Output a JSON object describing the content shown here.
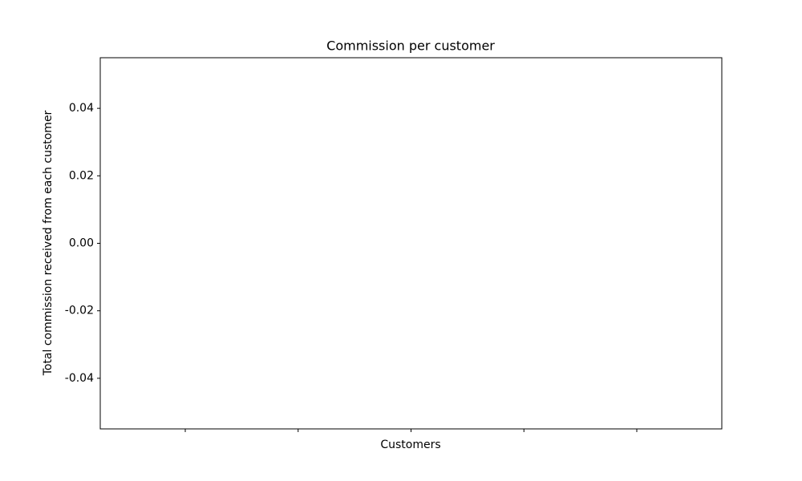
{
  "chart_data": {
    "type": "bar",
    "title": "Commission per customer",
    "xlabel": "Customers",
    "ylabel": "Total commission received from each customer",
    "categories": [
      null,
      null,
      null,
      null,
      null
    ],
    "values": [
      0,
      0,
      0,
      0,
      0
    ],
    "color": "#1f77b4",
    "ylim": [
      -0.055,
      0.055
    ],
    "yticks": [
      -0.04,
      -0.02,
      {
        "value": 0,
        "label": "0.00"
      },
      0.02,
      0.04
    ],
    "grid": false
  }
}
